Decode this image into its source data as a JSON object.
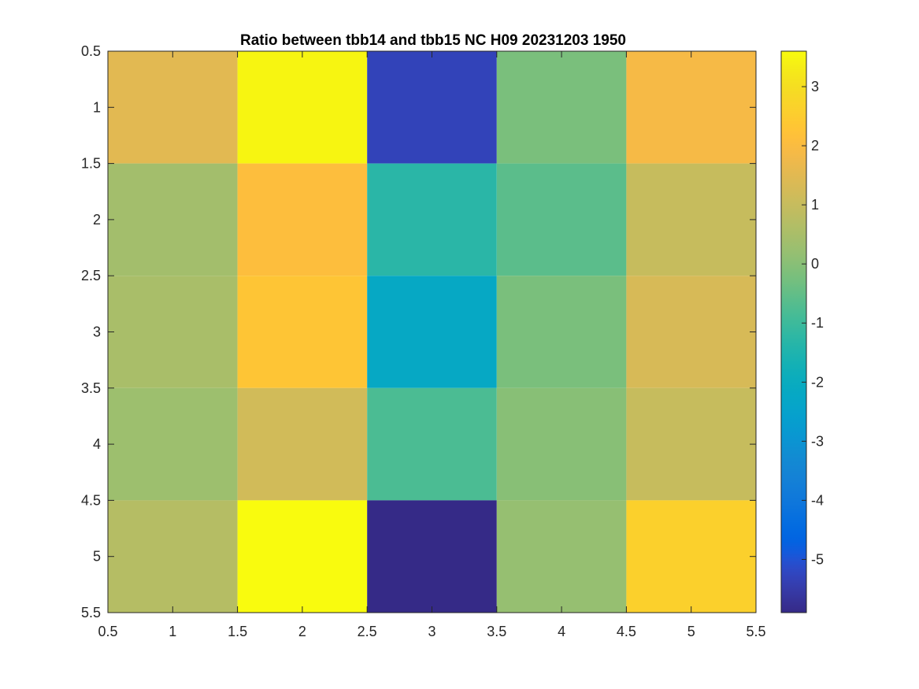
{
  "chart_data": {
    "type": "heatmap",
    "title": "Ratio between tbb14 and tbb15 NC H09 20231203 1950",
    "xlabel": "",
    "ylabel": "",
    "x_ticks": [
      "0.5",
      "1",
      "1.5",
      "2",
      "2.5",
      "3",
      "3.5",
      "4",
      "4.5",
      "5",
      "5.5"
    ],
    "y_ticks": [
      "0.5",
      "1",
      "1.5",
      "2",
      "2.5",
      "3",
      "3.5",
      "4",
      "4.5",
      "5",
      "5.5"
    ],
    "xlim": [
      0.5,
      5.5
    ],
    "ylim": [
      0.5,
      5.5
    ],
    "y_direction": "reverse",
    "rows": [
      1,
      2,
      3,
      4,
      5
    ],
    "cols": [
      1,
      2,
      3,
      4,
      5
    ],
    "values": [
      [
        1.5,
        3.5,
        -5.3,
        -0.2,
        1.9
      ],
      [
        0.4,
        2.1,
        -1.3,
        -0.6,
        1.0
      ],
      [
        0.5,
        2.3,
        -2.2,
        -0.2,
        1.3
      ],
      [
        0.3,
        1.2,
        -0.8,
        0.0,
        1.0
      ],
      [
        0.7,
        3.6,
        -5.9,
        0.2,
        2.6
      ]
    ],
    "colorbar": {
      "clim": [
        -5.9,
        3.6
      ],
      "ticks": [
        "-5",
        "-4",
        "-3",
        "-2",
        "-1",
        "0",
        "1",
        "2",
        "3"
      ],
      "colormap": "parula",
      "placement": "right"
    },
    "grid": false
  }
}
